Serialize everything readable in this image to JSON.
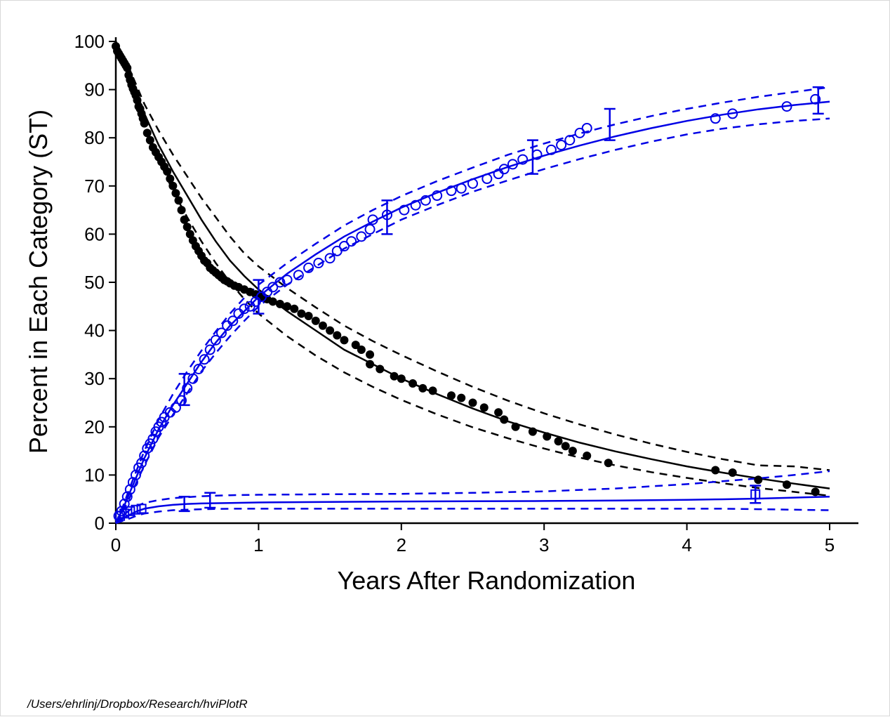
{
  "footer_path": "/Users/ehrlinj/Dropbox/Research/hviPlotR",
  "colors": {
    "black": "#000000",
    "blue": "#0000e6"
  },
  "chart_data": {
    "type": "scatter",
    "title": "",
    "xlabel": "Years After Randomization",
    "ylabel": "Percent in Each Category (ST)",
    "xlim": [
      0,
      5.2
    ],
    "ylim": [
      0,
      100
    ],
    "xticks": [
      0,
      1,
      2,
      3,
      4,
      5
    ],
    "yticks": [
      0,
      10,
      20,
      30,
      40,
      50,
      60,
      70,
      80,
      90,
      100
    ],
    "curves": [
      {
        "name": "black-fit",
        "color": "#000000",
        "x": [
          0,
          0.05,
          0.1,
          0.15,
          0.2,
          0.3,
          0.4,
          0.5,
          0.6,
          0.7,
          0.8,
          0.9,
          1.0,
          1.2,
          1.4,
          1.6,
          1.8,
          2.0,
          2.25,
          2.5,
          2.75,
          3.0,
          3.25,
          3.5,
          3.75,
          4.0,
          4.25,
          4.5,
          4.75,
          5.0
        ],
        "mid": [
          100,
          96.5,
          93.0,
          89.0,
          85.0,
          78.5,
          73.0,
          68.0,
          63.0,
          58.5,
          54.5,
          51.3,
          48.5,
          44.0,
          40.0,
          36.0,
          33.0,
          30.0,
          26.8,
          23.8,
          21.1,
          18.8,
          16.7,
          14.9,
          13.3,
          11.8,
          10.5,
          9.3,
          8.2,
          7.2
        ],
        "lower": [
          100,
          96.0,
          92.0,
          87.5,
          83.0,
          75.5,
          69.0,
          63.5,
          58.5,
          54.0,
          50.0,
          46.5,
          43.5,
          38.8,
          34.8,
          31.3,
          28.3,
          25.6,
          22.6,
          19.9,
          17.6,
          15.5,
          13.6,
          12.0,
          10.6,
          9.4,
          8.3,
          7.3,
          6.5,
          5.7
        ],
        "upper": [
          100,
          97.0,
          94.0,
          90.5,
          87.0,
          81.5,
          76.5,
          72.0,
          67.5,
          63.5,
          59.5,
          56.0,
          53.3,
          48.8,
          44.8,
          41.0,
          37.8,
          34.9,
          31.5,
          28.3,
          25.4,
          22.8,
          20.5,
          18.4,
          16.5,
          14.8,
          13.3,
          12.0,
          11.8,
          11.0
        ]
      },
      {
        "name": "blue-circles-fit",
        "color": "#0000e6",
        "x": [
          0,
          0.05,
          0.1,
          0.15,
          0.2,
          0.3,
          0.4,
          0.5,
          0.6,
          0.7,
          0.8,
          0.9,
          1.0,
          1.2,
          1.4,
          1.6,
          1.8,
          2.0,
          2.25,
          2.5,
          2.75,
          3.0,
          3.25,
          3.5,
          3.75,
          4.0,
          4.25,
          4.5,
          4.75,
          5.0
        ],
        "mid": [
          0,
          3.0,
          6.5,
          10.0,
          13.5,
          19.5,
          24.5,
          29.0,
          33.5,
          37.5,
          41.0,
          44.0,
          47.0,
          51.8,
          55.8,
          59.5,
          62.6,
          65.5,
          68.6,
          71.4,
          74.0,
          76.3,
          78.4,
          80.3,
          82.0,
          83.5,
          84.8,
          85.9,
          86.8,
          87.5
        ],
        "lower": [
          0,
          2.5,
          5.5,
          8.8,
          12.0,
          17.8,
          22.5,
          27.0,
          31.5,
          35.3,
          38.8,
          42.0,
          45.0,
          49.5,
          53.3,
          57.0,
          60.0,
          63.0,
          66.0,
          68.8,
          71.2,
          73.5,
          75.6,
          77.5,
          79.2,
          80.7,
          81.9,
          82.8,
          83.5,
          84.0
        ],
        "upper": [
          0,
          3.5,
          7.5,
          11.3,
          15.0,
          21.5,
          26.8,
          31.5,
          35.8,
          39.8,
          43.5,
          46.8,
          49.5,
          54.0,
          58.0,
          61.8,
          65.0,
          67.9,
          71.0,
          73.8,
          76.5,
          78.8,
          80.9,
          82.8,
          84.5,
          86.0,
          87.3,
          88.5,
          89.5,
          90.5
        ]
      },
      {
        "name": "blue-squares-fit",
        "color": "#0000e6",
        "x": [
          0,
          0.05,
          0.1,
          0.15,
          0.2,
          0.3,
          0.4,
          0.5,
          0.6,
          0.8,
          1.0,
          1.5,
          2.0,
          2.5,
          3.0,
          3.5,
          4.0,
          4.25,
          4.5,
          4.75,
          5.0
        ],
        "mid": [
          0,
          1.0,
          1.8,
          2.5,
          3.0,
          3.5,
          3.8,
          4.0,
          4.1,
          4.2,
          4.3,
          4.4,
          4.5,
          4.55,
          4.6,
          4.7,
          4.85,
          4.95,
          5.1,
          5.3,
          5.5
        ],
        "lower": [
          0,
          0.5,
          1.0,
          1.6,
          2.0,
          2.4,
          2.7,
          2.8,
          2.9,
          3.0,
          3.0,
          3.0,
          3.0,
          3.0,
          3.0,
          3.0,
          3.0,
          3.0,
          2.9,
          2.8,
          2.7
        ],
        "upper": [
          0,
          1.6,
          2.8,
          3.6,
          4.2,
          4.8,
          5.2,
          5.4,
          5.6,
          5.8,
          5.9,
          6.0,
          6.1,
          6.3,
          6.6,
          7.2,
          8.1,
          8.7,
          9.3,
          10.0,
          10.8
        ]
      }
    ],
    "series": [
      {
        "name": "black-dots",
        "color": "#000000",
        "marker": "filled-circle",
        "x": [
          0.0,
          0.01,
          0.02,
          0.03,
          0.04,
          0.05,
          0.06,
          0.07,
          0.08,
          0.09,
          0.1,
          0.11,
          0.12,
          0.13,
          0.14,
          0.15,
          0.16,
          0.17,
          0.18,
          0.19,
          0.2,
          0.22,
          0.24,
          0.26,
          0.28,
          0.3,
          0.32,
          0.34,
          0.36,
          0.38,
          0.4,
          0.42,
          0.44,
          0.46,
          0.48,
          0.5,
          0.52,
          0.54,
          0.56,
          0.58,
          0.6,
          0.62,
          0.64,
          0.66,
          0.68,
          0.7,
          0.72,
          0.74,
          0.76,
          0.78,
          0.8,
          0.83,
          0.86,
          0.9,
          0.94,
          0.98,
          1.02,
          1.06,
          1.1,
          1.15,
          1.2,
          1.25,
          1.3,
          1.35,
          1.4,
          1.45,
          1.5,
          1.55,
          1.6,
          1.68,
          1.72,
          1.78,
          1.78,
          1.85,
          1.95,
          2.0,
          2.08,
          2.15,
          2.22,
          2.35,
          2.42,
          2.5,
          2.58,
          2.68,
          2.72,
          2.8,
          2.92,
          3.02,
          3.1,
          3.15,
          3.2,
          3.3,
          3.45,
          4.2,
          4.32,
          4.5,
          4.7,
          4.9
        ],
        "y": [
          99,
          98,
          97.5,
          97,
          96.5,
          96,
          95.5,
          95,
          94.5,
          93,
          92,
          91,
          90.2,
          89.5,
          88.8,
          87.8,
          86.5,
          86,
          85,
          84,
          83,
          81,
          79.5,
          78,
          77,
          76,
          75,
          74,
          73,
          71.5,
          70,
          68.5,
          67,
          65,
          63,
          61.5,
          60,
          58.7,
          57.5,
          56.5,
          55.5,
          54.5,
          54,
          53,
          52.5,
          52,
          51.5,
          51,
          50.5,
          50.2,
          49.8,
          49.3,
          49,
          48.5,
          48,
          47.5,
          47,
          46.5,
          46,
          45.5,
          45,
          44.5,
          43.5,
          43,
          42,
          41,
          40,
          39,
          38,
          37,
          36,
          35,
          33,
          32,
          30.5,
          30,
          29,
          28,
          27.5,
          26.5,
          26,
          25,
          24,
          23,
          21.5,
          20,
          19,
          18,
          17,
          16,
          15,
          14,
          12.5,
          11,
          10.5,
          9,
          8,
          6.5
        ]
      },
      {
        "name": "blue-circles",
        "color": "#0000e6",
        "marker": "open-circle",
        "x": [
          0.02,
          0.04,
          0.06,
          0.08,
          0.1,
          0.12,
          0.14,
          0.16,
          0.18,
          0.2,
          0.22,
          0.24,
          0.26,
          0.28,
          0.3,
          0.32,
          0.34,
          0.38,
          0.42,
          0.46,
          0.5,
          0.54,
          0.58,
          0.62,
          0.66,
          0.7,
          0.74,
          0.78,
          0.82,
          0.86,
          0.9,
          0.94,
          0.98,
          1.02,
          1.06,
          1.1,
          1.15,
          1.2,
          1.28,
          1.35,
          1.42,
          1.5,
          1.55,
          1.6,
          1.65,
          1.72,
          1.78,
          1.8,
          1.9,
          2.02,
          2.1,
          2.17,
          2.25,
          2.35,
          2.42,
          2.5,
          2.6,
          2.68,
          2.72,
          2.78,
          2.85,
          2.95,
          3.05,
          3.12,
          3.18,
          3.25,
          3.3,
          4.2,
          4.32,
          4.7,
          4.9
        ],
        "y": [
          1.5,
          2.5,
          4,
          5.5,
          7,
          8.5,
          10,
          11.5,
          12.5,
          14,
          15.5,
          16.5,
          17.5,
          19,
          20,
          21,
          22,
          23,
          24,
          25.5,
          28,
          30,
          32,
          34,
          36,
          38,
          39.5,
          41,
          42,
          43.5,
          44.5,
          45,
          46,
          47,
          48,
          49,
          50,
          50.5,
          51.5,
          53,
          54,
          55,
          56.5,
          57.5,
          58.5,
          59.5,
          61,
          63,
          64,
          65,
          66,
          67,
          68,
          69,
          69.5,
          70.5,
          71.5,
          72.5,
          73.5,
          74.5,
          75.5,
          76.5,
          77.5,
          78.5,
          79.5,
          81,
          82,
          84,
          85,
          86.5,
          88
        ]
      },
      {
        "name": "blue-squares",
        "color": "#0000e6",
        "marker": "open-square",
        "x": [
          0.03,
          0.06,
          0.1,
          0.14,
          0.18,
          4.48
        ],
        "y": [
          1.5,
          2,
          2.5,
          2.8,
          3,
          6
        ]
      }
    ],
    "error_bars": [
      {
        "series": "blue-circles",
        "x": 0.48,
        "y": 27.5,
        "low": 24.5,
        "high": 31
      },
      {
        "series": "blue-circles",
        "x": 1.0,
        "y": 47,
        "low": 43.5,
        "high": 50.5
      },
      {
        "series": "blue-circles",
        "x": 1.9,
        "y": 63.5,
        "low": 60,
        "high": 67
      },
      {
        "series": "blue-circles",
        "x": 2.92,
        "y": 76,
        "low": 72.5,
        "high": 79.5
      },
      {
        "series": "blue-circles",
        "x": 3.46,
        "y": 83,
        "low": 79.5,
        "high": 86
      },
      {
        "series": "blue-circles",
        "x": 4.92,
        "y": 88,
        "low": 85,
        "high": 90.5
      },
      {
        "series": "blue-squares",
        "x": 0.48,
        "y": 4,
        "low": 2.5,
        "high": 5.5
      },
      {
        "series": "blue-squares",
        "x": 0.66,
        "y": 4.7,
        "low": 3.2,
        "high": 6.3
      },
      {
        "series": "blue-squares",
        "x": 4.48,
        "y": 6,
        "low": 4.2,
        "high": 7.8
      }
    ]
  }
}
